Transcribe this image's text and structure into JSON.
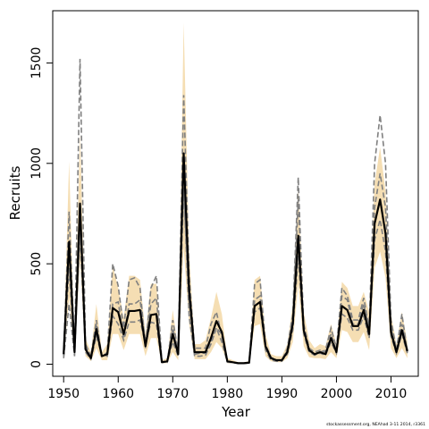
{
  "chart_data": {
    "type": "line",
    "xlabel": "Year",
    "ylabel": "Recruits",
    "xlim": [
      1948,
      2015
    ],
    "ylim": [
      -60,
      1760
    ],
    "grid": false,
    "legend": "none",
    "x_ticks": [
      1950,
      1960,
      1970,
      1980,
      1990,
      2000,
      2010
    ],
    "y_ticks": [
      0,
      500,
      1000,
      1500
    ],
    "note": "stockassessment.org, NEAhad 3-11 2014, r3361",
    "colors": {
      "band": "#f5deb3",
      "estimate": "#000000",
      "retro": "#808080"
    },
    "x": [
      1950,
      1951,
      1952,
      1953,
      1954,
      1955,
      1956,
      1957,
      1958,
      1959,
      1960,
      1961,
      1962,
      1963,
      1964,
      1965,
      1966,
      1967,
      1968,
      1969,
      1970,
      1971,
      1972,
      1973,
      1974,
      1975,
      1976,
      1977,
      1978,
      1979,
      1980,
      1981,
      1982,
      1983,
      1984,
      1985,
      1986,
      1987,
      1988,
      1989,
      1990,
      1991,
      1992,
      1993,
      1994,
      1995,
      1996,
      1997,
      1998,
      1999,
      2000,
      2001,
      2002,
      2003,
      2004,
      2005,
      2006,
      2007,
      2008,
      2009,
      2010,
      2011,
      2012,
      2013
    ],
    "series": [
      {
        "role": "estimate",
        "values": [
          50,
          610,
          60,
          800,
          75,
          30,
          175,
          40,
          50,
          280,
          260,
          150,
          265,
          265,
          270,
          90,
          245,
          250,
          10,
          15,
          150,
          50,
          1050,
          370,
          60,
          60,
          60,
          130,
          215,
          160,
          15,
          10,
          5,
          5,
          8,
          290,
          310,
          90,
          30,
          20,
          20,
          60,
          200,
          640,
          170,
          70,
          50,
          60,
          50,
          130,
          60,
          290,
          270,
          190,
          190,
          270,
          150,
          700,
          820,
          650,
          160,
          60,
          170,
          65
        ]
      },
      {
        "role": "upper",
        "values": [
          80,
          1010,
          80,
          1150,
          130,
          60,
          300,
          60,
          100,
          490,
          380,
          230,
          440,
          440,
          420,
          150,
          400,
          400,
          20,
          30,
          270,
          70,
          1700,
          560,
          100,
          100,
          120,
          230,
          360,
          250,
          30,
          20,
          10,
          10,
          15,
          420,
          440,
          150,
          50,
          40,
          40,
          100,
          300,
          880,
          260,
          120,
          80,
          100,
          90,
          200,
          100,
          410,
          380,
          290,
          290,
          360,
          260,
          900,
          1080,
          860,
          250,
          100,
          260,
          110
        ]
      },
      {
        "role": "lower",
        "values": [
          25,
          330,
          35,
          520,
          40,
          15,
          80,
          20,
          20,
          150,
          150,
          70,
          150,
          150,
          150,
          40,
          130,
          130,
          5,
          5,
          60,
          20,
          580,
          200,
          25,
          25,
          25,
          60,
          110,
          80,
          5,
          5,
          2,
          2,
          3,
          190,
          200,
          40,
          15,
          10,
          10,
          30,
          110,
          400,
          90,
          35,
          30,
          30,
          25,
          60,
          30,
          170,
          160,
          110,
          110,
          160,
          70,
          480,
          560,
          430,
          80,
          30,
          80,
          30
        ]
      },
      {
        "role": "retro-1",
        "values": [
          40,
          480,
          50,
          1520,
          100,
          40,
          220,
          35,
          60,
          500,
          390,
          180,
          420,
          430,
          380,
          80,
          380,
          440,
          15,
          10,
          220,
          60,
          1340,
          440,
          80,
          80,
          80,
          200,
          260,
          140,
          15,
          10,
          5,
          5,
          10,
          400,
          420,
          100,
          35,
          20,
          20,
          80,
          250,
          930,
          170,
          65,
          45,
          60,
          70,
          180,
          80,
          380,
          340,
          220,
          220,
          330,
          180,
          1000,
          1240,
          1000,
          220,
          70,
          250,
          60
        ]
      },
      {
        "role": "retro-2",
        "values": [
          60,
          760,
          70,
          650,
          60,
          25,
          140,
          45,
          40,
          240,
          200,
          120,
          210,
          210,
          220,
          100,
          210,
          200,
          10,
          15,
          110,
          40,
          870,
          310,
          50,
          55,
          55,
          110,
          180,
          150,
          12,
          10,
          5,
          5,
          6,
          260,
          280,
          80,
          25,
          18,
          18,
          50,
          170,
          540,
          150,
          60,
          45,
          55,
          45,
          110,
          55,
          250,
          230,
          170,
          170,
          240,
          130,
          620,
          720,
          560,
          140,
          55,
          150,
          55
        ]
      },
      {
        "role": "retro-3",
        "values": [
          30,
          300,
          40,
          700,
          90,
          35,
          200,
          45,
          50,
          300,
          310,
          130,
          300,
          300,
          320,
          110,
          300,
          330,
          8,
          12,
          180,
          55,
          880,
          240,
          40,
          40,
          45,
          100,
          180,
          110,
          10,
          8,
          4,
          4,
          6,
          320,
          340,
          70,
          20,
          15,
          15,
          70,
          220,
          820,
          200,
          80,
          60,
          70,
          60,
          150,
          70,
          340,
          320,
          200,
          200,
          300,
          170,
          780,
          950,
          780,
          180,
          65,
          200,
          70
        ]
      }
    ]
  }
}
